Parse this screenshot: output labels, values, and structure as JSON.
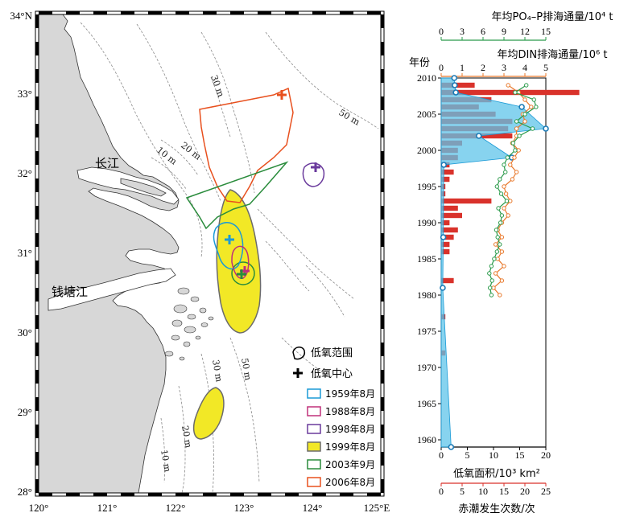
{
  "map": {
    "lat_labels": [
      "34°N",
      "33°",
      "32°",
      "31°",
      "30°",
      "29°",
      "28°"
    ],
    "lon_labels": [
      "120°",
      "121°",
      "122°",
      "123°",
      "124°",
      "125°E"
    ],
    "place_names": {
      "yangtze": "长江",
      "qiantang": "钱塘江"
    },
    "isobath_labels": {
      "m30_north": "30 m",
      "m50_north": "50 m",
      "m20": "20 m",
      "m10": "10 m",
      "m50_south": "50 m",
      "m30_south": "30 m",
      "m20_south": "20 m",
      "m10_south": "10 m"
    },
    "legend": {
      "range": "低氧范围",
      "center": "低氧中心",
      "items": [
        {
          "label": "1959年8月",
          "color": "#1a9ad6",
          "fill": "none"
        },
        {
          "label": "1988年8月",
          "color": "#c0307a",
          "fill": "none"
        },
        {
          "label": "1998年8月",
          "color": "#6a3a9c",
          "fill": "none"
        },
        {
          "label": "1999年8月",
          "color": "#6b6b6b",
          "fill": "#f2e826"
        },
        {
          "label": "2003年9月",
          "color": "#2a8c3c",
          "fill": "none"
        },
        {
          "label": "2006年8月",
          "color": "#e8501e",
          "fill": "none"
        }
      ]
    },
    "colors": {
      "land": "#d7d7d7",
      "sea": "#ffffff",
      "isobath": "#8a8a8a"
    }
  },
  "chart_data": {
    "type": "bar",
    "y_title": "年份",
    "y_ticks": [
      "2010",
      "2005",
      "2000",
      "1995",
      "1990",
      "1985",
      "1980",
      "1975",
      "1970",
      "1965",
      "1960"
    ],
    "ylim": [
      1959,
      2010
    ],
    "bottom_axis_1": {
      "label": "低氧面积/10³ km²",
      "ticks": [
        "0",
        "5",
        "10",
        "15",
        "20"
      ],
      "range": [
        0,
        20
      ]
    },
    "bottom_axis_2": {
      "label": "赤潮发生次数/次",
      "ticks": [
        "0",
        "5",
        "10",
        "15",
        "20",
        "25"
      ],
      "range": [
        0,
        25
      ],
      "color": "#d9322b"
    },
    "top_axis_1": {
      "label": "年均PO₄–P排海通量/10⁴ t",
      "ticks": [
        "0",
        "3",
        "6",
        "9",
        "12",
        "15"
      ],
      "range": [
        0,
        15
      ],
      "color": "#2a9a4a"
    },
    "top_axis_2": {
      "label": "年均DIN排海通量/10⁶ t",
      "ticks": [
        "0",
        "1",
        "2",
        "3",
        "4",
        "5"
      ],
      "range": [
        0,
        5
      ],
      "color": "#e8782a"
    },
    "hypoxia_area": {
      "name": "低氧面积",
      "color": "#1a9ad6",
      "points": [
        {
          "year": 1959,
          "value": 1.9
        },
        {
          "year": 1981,
          "value": 0.3
        },
        {
          "year": 1988,
          "value": 0.4
        },
        {
          "year": 1998,
          "value": 0.5
        },
        {
          "year": 1999,
          "value": 13.5
        },
        {
          "year": 2002,
          "value": 7.2
        },
        {
          "year": 2003,
          "value": 20.0
        },
        {
          "year": 2006,
          "value": 15.4
        },
        {
          "year": 2008,
          "value": 2.8
        },
        {
          "year": 2009,
          "value": 2.6
        },
        {
          "year": 2010,
          "value": 2.5
        }
      ]
    },
    "red_tide": {
      "name": "赤潮发生次数",
      "color": "#d9322b",
      "points": [
        {
          "year": 1972,
          "value": 1
        },
        {
          "year": 1977,
          "value": 1
        },
        {
          "year": 1982,
          "value": 3
        },
        {
          "year": 1986,
          "value": 2
        },
        {
          "year": 1987,
          "value": 2
        },
        {
          "year": 1988,
          "value": 3
        },
        {
          "year": 1989,
          "value": 4
        },
        {
          "year": 1990,
          "value": 2
        },
        {
          "year": 1991,
          "value": 5
        },
        {
          "year": 1992,
          "value": 4
        },
        {
          "year": 1993,
          "value": 12
        },
        {
          "year": 1994,
          "value": 1
        },
        {
          "year": 1995,
          "value": 1
        },
        {
          "year": 1996,
          "value": 2
        },
        {
          "year": 1997,
          "value": 3
        },
        {
          "year": 1998,
          "value": 2
        },
        {
          "year": 1999,
          "value": 4
        },
        {
          "year": 2000,
          "value": 4
        },
        {
          "year": 2001,
          "value": 5
        },
        {
          "year": 2002,
          "value": 17
        },
        {
          "year": 2003,
          "value": 16
        },
        {
          "year": 2004,
          "value": 17
        },
        {
          "year": 2005,
          "value": 13
        },
        {
          "year": 2006,
          "value": 9
        },
        {
          "year": 2007,
          "value": 12
        },
        {
          "year": 2008,
          "value": 33
        },
        {
          "year": 2009,
          "value": 8
        }
      ]
    },
    "po4_flux": {
      "name": "年均PO₄–P排海通量",
      "color": "#2a9a4a",
      "points": [
        {
          "year": 1980,
          "value": 7.2
        },
        {
          "year": 1981,
          "value": 7.0
        },
        {
          "year": 1982,
          "value": 7.3
        },
        {
          "year": 1983,
          "value": 6.9
        },
        {
          "year": 1984,
          "value": 7.2
        },
        {
          "year": 1985,
          "value": 7.6
        },
        {
          "year": 1986,
          "value": 8.0
        },
        {
          "year": 1987,
          "value": 8.4
        },
        {
          "year": 1988,
          "value": 8.1
        },
        {
          "year": 1989,
          "value": 7.9
        },
        {
          "year": 1990,
          "value": 8.5
        },
        {
          "year": 1991,
          "value": 8.7
        },
        {
          "year": 1992,
          "value": 8.2
        },
        {
          "year": 1993,
          "value": 9.4
        },
        {
          "year": 1994,
          "value": 8.6
        },
        {
          "year": 1995,
          "value": 8.0
        },
        {
          "year": 1996,
          "value": 8.4
        },
        {
          "year": 1997,
          "value": 9.2
        },
        {
          "year": 1998,
          "value": 9.0
        },
        {
          "year": 1999,
          "value": 9.5
        },
        {
          "year": 2000,
          "value": 10.6
        },
        {
          "year": 2001,
          "value": 10.3
        },
        {
          "year": 2002,
          "value": 11.2
        },
        {
          "year": 2003,
          "value": 13.1
        },
        {
          "year": 2004,
          "value": 10.8
        },
        {
          "year": 2005,
          "value": 12.0
        },
        {
          "year": 2006,
          "value": 13.6
        },
        {
          "year": 2007,
          "value": 13.3
        },
        {
          "year": 2008,
          "value": 10.6
        },
        {
          "year": 2009,
          "value": 12.2
        }
      ]
    },
    "din_flux": {
      "name": "年均DIN排海通量",
      "color": "#e8782a",
      "points": [
        {
          "year": 1980,
          "value": 2.8
        },
        {
          "year": 1981,
          "value": 2.5
        },
        {
          "year": 1982,
          "value": 2.9
        },
        {
          "year": 1983,
          "value": 2.6
        },
        {
          "year": 1984,
          "value": 3.0
        },
        {
          "year": 1985,
          "value": 2.7
        },
        {
          "year": 1986,
          "value": 2.9
        },
        {
          "year": 1987,
          "value": 2.6
        },
        {
          "year": 1988,
          "value": 2.9
        },
        {
          "year": 1989,
          "value": 2.7
        },
        {
          "year": 1990,
          "value": 2.9
        },
        {
          "year": 1991,
          "value": 3.2
        },
        {
          "year": 1992,
          "value": 3.0
        },
        {
          "year": 1993,
          "value": 3.3
        },
        {
          "year": 1994,
          "value": 3.1
        },
        {
          "year": 1995,
          "value": 3.0
        },
        {
          "year": 1996,
          "value": 3.4
        },
        {
          "year": 1997,
          "value": 3.6
        },
        {
          "year": 1998,
          "value": 3.3
        },
        {
          "year": 1999,
          "value": 3.5
        },
        {
          "year": 2000,
          "value": 3.7
        },
        {
          "year": 2001,
          "value": 3.4
        },
        {
          "year": 2002,
          "value": 3.6
        },
        {
          "year": 2003,
          "value": 3.6
        },
        {
          "year": 2004,
          "value": 4.0
        },
        {
          "year": 2005,
          "value": 3.9
        },
        {
          "year": 2006,
          "value": 4.3
        },
        {
          "year": 2007,
          "value": 4.0
        },
        {
          "year": 2008,
          "value": 3.7
        },
        {
          "year": 2009,
          "value": 3.2
        }
      ]
    }
  }
}
